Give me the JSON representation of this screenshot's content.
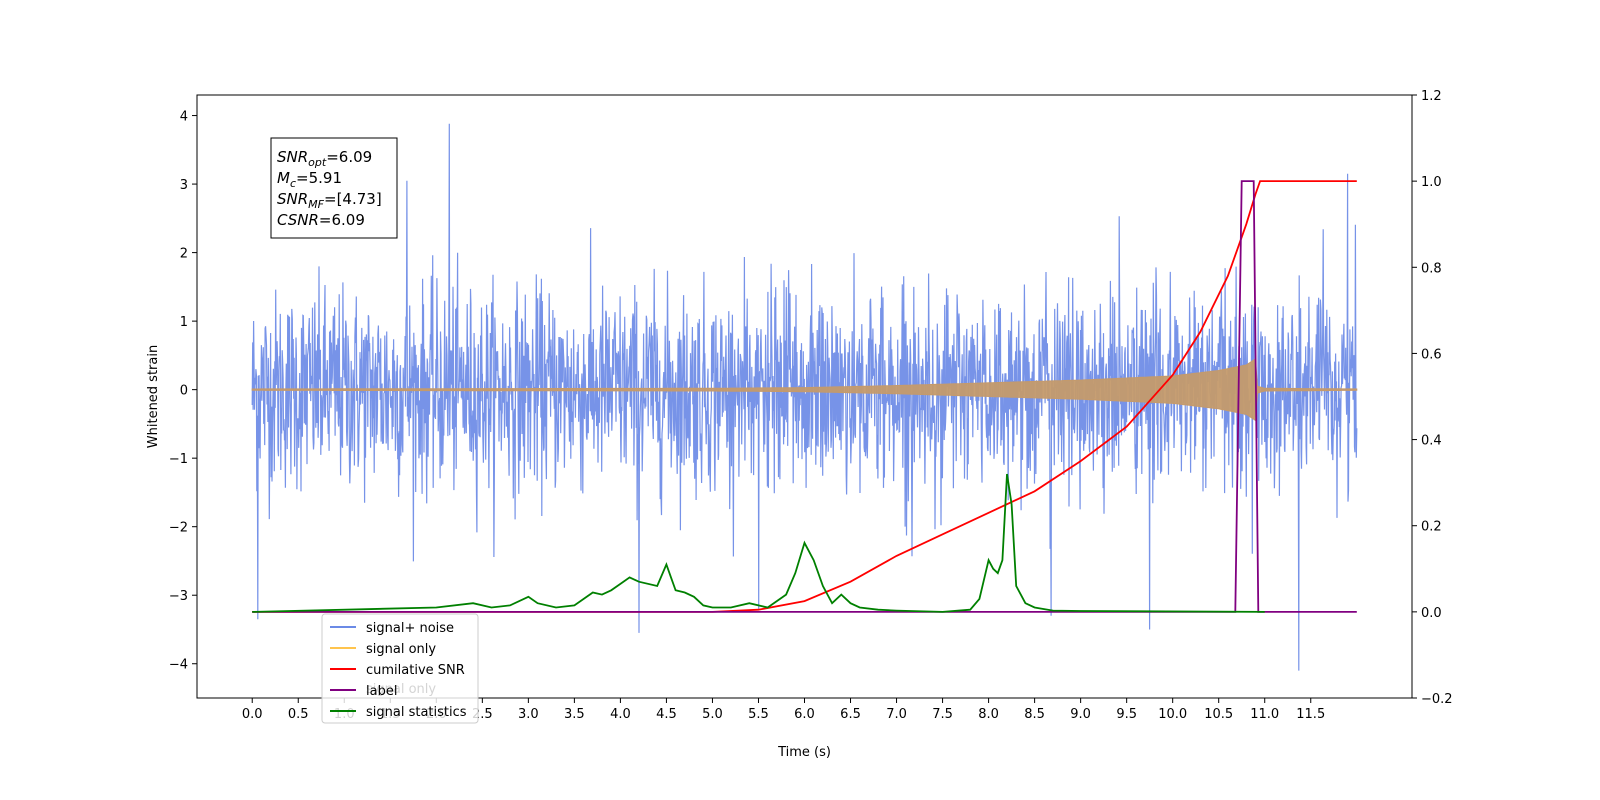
{
  "chart_data": {
    "type": "line",
    "xlabel": "Time (s)",
    "ylabel": "Whitened strain",
    "xlim": [
      -0.6,
      12.6
    ],
    "ylim": [
      -4.5,
      4.3
    ],
    "y2lim": [
      -0.2,
      1.2
    ],
    "x_ticks": [
      0.0,
      0.5,
      1.0,
      1.5,
      2.0,
      2.5,
      3.0,
      3.5,
      4.0,
      4.5,
      5.0,
      5.5,
      6.0,
      6.5,
      7.0,
      7.5,
      8.0,
      8.5,
      9.0,
      9.5,
      10.0,
      10.5,
      11.0,
      11.5
    ],
    "x_tick_labels": [
      "0.0",
      "0.5",
      "1.0",
      "1.5",
      "2.0",
      "2.5",
      "3.0",
      "3.5",
      "4.0",
      "4.5",
      "5.0",
      "5.5",
      "6.0",
      "6.5",
      "7.0",
      "7.5",
      "8.0",
      "8.5",
      "9.0",
      "9.5",
      "10.0",
      "10.5",
      "11.0",
      "11.5"
    ],
    "y_ticks": [
      -4,
      -3,
      -2,
      -1,
      0,
      1,
      2,
      3,
      4
    ],
    "y_tick_labels": [
      "−4",
      "−3",
      "−2",
      "−1",
      "0",
      "1",
      "2",
      "3",
      "4"
    ],
    "y2_ticks": [
      -0.2,
      0.0,
      0.2,
      0.4,
      0.6,
      0.8,
      1.0,
      1.2
    ],
    "y2_tick_labels": [
      "−0.2",
      "0.0",
      "0.2",
      "0.4",
      "0.6",
      "0.8",
      "1.0",
      "1.2"
    ],
    "grid": false,
    "legend": {
      "placement": "lower-left",
      "entries": [
        {
          "name": "signal+ noise",
          "color": "#6b8ae6"
        },
        {
          "name": "signal only",
          "color": "#ffc44d"
        },
        {
          "name": "cumilative SNR",
          "color": "#ff0000"
        },
        {
          "name": "label",
          "color": "#800080"
        },
        {
          "name": "signal statistics",
          "color": "#008000"
        }
      ]
    },
    "hidden_legend_text": "signal only",
    "annotation": [
      {
        "name": "SNR",
        "sub": "opt",
        "value": "=6.09"
      },
      {
        "name": "M",
        "sub": "c",
        "value": "=5.91"
      },
      {
        "name": "SNR",
        "sub": "MF",
        "value": "=[4.73]"
      },
      {
        "name": "CSNR",
        "sub": "",
        "value": "=6.09"
      }
    ],
    "series": [
      {
        "name": "signal+ noise",
        "axis": "left",
        "color": "#6b8ae6",
        "description_kind": "noise",
        "x_range": [
          0.0,
          12.0
        ],
        "std": 0.72,
        "samples": 2400,
        "spikes": [
          [
            0.06,
            -3.35
          ],
          [
            2.14,
            3.88
          ],
          [
            4.2,
            -3.55
          ],
          [
            9.75,
            -3.5
          ],
          [
            11.37,
            -4.1
          ],
          [
            11.9,
            3.15
          ],
          [
            1.68,
            3.05
          ],
          [
            5.5,
            -3.2
          ],
          [
            8.68,
            -3.3
          ]
        ]
      },
      {
        "name": "signal only",
        "axis": "left",
        "color": "#c49a6c",
        "description_kind": "envelope",
        "x": [
          0.0,
          5.0,
          6.0,
          7.0,
          8.0,
          9.0,
          9.5,
          10.0,
          10.5,
          10.8,
          10.9,
          10.92,
          11.0,
          12.0
        ],
        "amplitude": [
          0.01,
          0.02,
          0.03,
          0.06,
          0.1,
          0.14,
          0.17,
          0.2,
          0.28,
          0.36,
          0.45,
          0.05,
          0.02,
          0.01
        ]
      },
      {
        "name": "cumilative SNR",
        "axis": "right",
        "color": "#ff0000",
        "x": [
          0.0,
          5.0,
          5.5,
          6.0,
          6.5,
          7.0,
          7.5,
          8.0,
          8.5,
          9.0,
          9.5,
          10.0,
          10.3,
          10.6,
          10.8,
          10.9,
          10.95,
          11.0,
          12.0
        ],
        "values": [
          0.0,
          0.0,
          0.005,
          0.025,
          0.07,
          0.13,
          0.18,
          0.23,
          0.28,
          0.35,
          0.43,
          0.55,
          0.65,
          0.78,
          0.9,
          0.97,
          1.0,
          1.0,
          1.0
        ]
      },
      {
        "name": "label",
        "axis": "right",
        "color": "#800080",
        "x": [
          0.0,
          10.68,
          10.75,
          10.88,
          10.93,
          12.0
        ],
        "values": [
          0.0,
          0.0,
          1.0,
          1.0,
          0.0,
          0.0
        ]
      },
      {
        "name": "signal statistics",
        "axis": "right",
        "color": "#008000",
        "x": [
          0.0,
          2.0,
          2.4,
          2.6,
          2.8,
          3.0,
          3.1,
          3.3,
          3.5,
          3.7,
          3.8,
          3.9,
          4.0,
          4.1,
          4.2,
          4.4,
          4.5,
          4.55,
          4.6,
          4.7,
          4.8,
          4.9,
          5.0,
          5.2,
          5.4,
          5.6,
          5.8,
          5.9,
          6.0,
          6.1,
          6.2,
          6.3,
          6.4,
          6.5,
          6.6,
          6.8,
          7.0,
          7.5,
          7.8,
          7.9,
          8.0,
          8.05,
          8.1,
          8.15,
          8.2,
          8.25,
          8.3,
          8.35,
          8.4,
          8.5,
          8.7,
          9.0,
          11.0
        ],
        "values": [
          0.0,
          0.01,
          0.02,
          0.01,
          0.015,
          0.035,
          0.02,
          0.01,
          0.015,
          0.045,
          0.04,
          0.05,
          0.065,
          0.08,
          0.07,
          0.06,
          0.11,
          0.08,
          0.05,
          0.045,
          0.035,
          0.015,
          0.01,
          0.01,
          0.02,
          0.01,
          0.04,
          0.09,
          0.16,
          0.12,
          0.06,
          0.02,
          0.04,
          0.02,
          0.01,
          0.005,
          0.003,
          0.0,
          0.005,
          0.03,
          0.12,
          0.1,
          0.09,
          0.12,
          0.32,
          0.25,
          0.06,
          0.04,
          0.02,
          0.01,
          0.003,
          0.002,
          0.0
        ]
      }
    ]
  }
}
